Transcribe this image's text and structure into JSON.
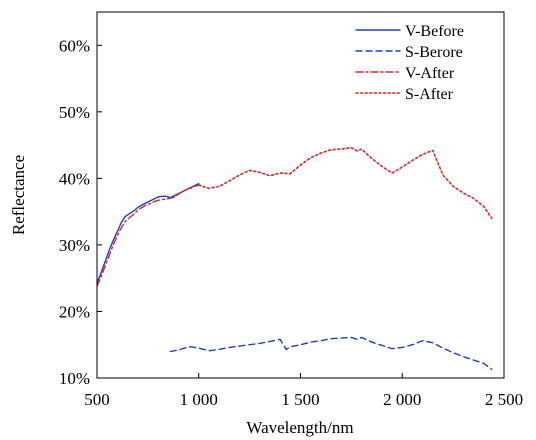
{
  "chart_data": {
    "type": "line",
    "title": "",
    "xlabel": "Wavelength/nm",
    "ylabel": "Reflectance",
    "xlim": [
      500,
      2500
    ],
    "ylim": [
      0.1,
      0.65
    ],
    "grid": false,
    "legend_position": "top-right",
    "x_ticks": [
      500,
      1000,
      1500,
      2000,
      2500
    ],
    "x_tick_labels": [
      "500",
      "1 000",
      "1 500",
      "2 000",
      "2 500"
    ],
    "y_ticks": [
      0.1,
      0.2,
      0.3,
      0.4,
      0.5,
      0.6
    ],
    "y_tick_labels": [
      "10%",
      "20%",
      "30%",
      "40%",
      "50%",
      "60%"
    ],
    "series": [
      {
        "name": "V-Before",
        "color": "#1f3fbf",
        "style": "solid",
        "x": [
          500,
          520,
          540,
          560,
          580,
          600,
          620,
          640,
          660,
          680,
          700,
          720,
          740,
          760,
          780,
          800,
          820,
          840,
          860,
          880,
          900,
          920,
          940,
          960,
          980,
          1000
        ],
        "y": [
          0.243,
          0.258,
          0.275,
          0.292,
          0.307,
          0.32,
          0.334,
          0.343,
          0.347,
          0.351,
          0.356,
          0.36,
          0.363,
          0.366,
          0.369,
          0.372,
          0.373,
          0.373,
          0.371,
          0.374,
          0.377,
          0.38,
          0.383,
          0.386,
          0.389,
          0.392
        ]
      },
      {
        "name": "S-Berore",
        "color": "#1f3fbf",
        "style": "dashed",
        "x": [
          860,
          900,
          930,
          960,
          1000,
          1050,
          1100,
          1150,
          1200,
          1250,
          1300,
          1350,
          1400,
          1430,
          1450,
          1500,
          1550,
          1600,
          1650,
          1700,
          1750,
          1780,
          1800,
          1850,
          1900,
          1950,
          2000,
          2050,
          2100,
          2150,
          2200,
          2250,
          2300,
          2350,
          2400,
          2440
        ],
        "y": [
          0.14,
          0.142,
          0.145,
          0.147,
          0.145,
          0.141,
          0.143,
          0.146,
          0.148,
          0.15,
          0.152,
          0.155,
          0.158,
          0.143,
          0.147,
          0.15,
          0.154,
          0.156,
          0.159,
          0.16,
          0.161,
          0.158,
          0.161,
          0.154,
          0.149,
          0.144,
          0.146,
          0.15,
          0.156,
          0.153,
          0.145,
          0.138,
          0.132,
          0.127,
          0.122,
          0.113
        ]
      },
      {
        "name": "V-After",
        "color": "#d62728",
        "style": "dashdot",
        "x": [
          500,
          520,
          540,
          560,
          580,
          600,
          620,
          640,
          660,
          680,
          700,
          720,
          740,
          760,
          780,
          800,
          820,
          840,
          860,
          880,
          900,
          920,
          940,
          960,
          980,
          1000
        ],
        "y": [
          0.238,
          0.252,
          0.268,
          0.284,
          0.3,
          0.314,
          0.326,
          0.336,
          0.341,
          0.346,
          0.352,
          0.356,
          0.36,
          0.362,
          0.365,
          0.367,
          0.368,
          0.369,
          0.37,
          0.372,
          0.376,
          0.38,
          0.383,
          0.385,
          0.388,
          0.39
        ]
      },
      {
        "name": "S-After",
        "color": "#d62728",
        "style": "dotted",
        "x": [
          1000,
          1050,
          1100,
          1150,
          1200,
          1250,
          1300,
          1350,
          1400,
          1450,
          1500,
          1550,
          1600,
          1650,
          1700,
          1750,
          1780,
          1800,
          1850,
          1900,
          1950,
          2000,
          2050,
          2100,
          2150,
          2200,
          2250,
          2300,
          2350,
          2400,
          2440
        ],
        "y": [
          0.39,
          0.385,
          0.388,
          0.396,
          0.405,
          0.412,
          0.409,
          0.404,
          0.408,
          0.407,
          0.42,
          0.431,
          0.438,
          0.443,
          0.444,
          0.446,
          0.441,
          0.444,
          0.43,
          0.418,
          0.408,
          0.417,
          0.427,
          0.436,
          0.442,
          0.405,
          0.388,
          0.378,
          0.37,
          0.358,
          0.34
        ]
      }
    ]
  }
}
